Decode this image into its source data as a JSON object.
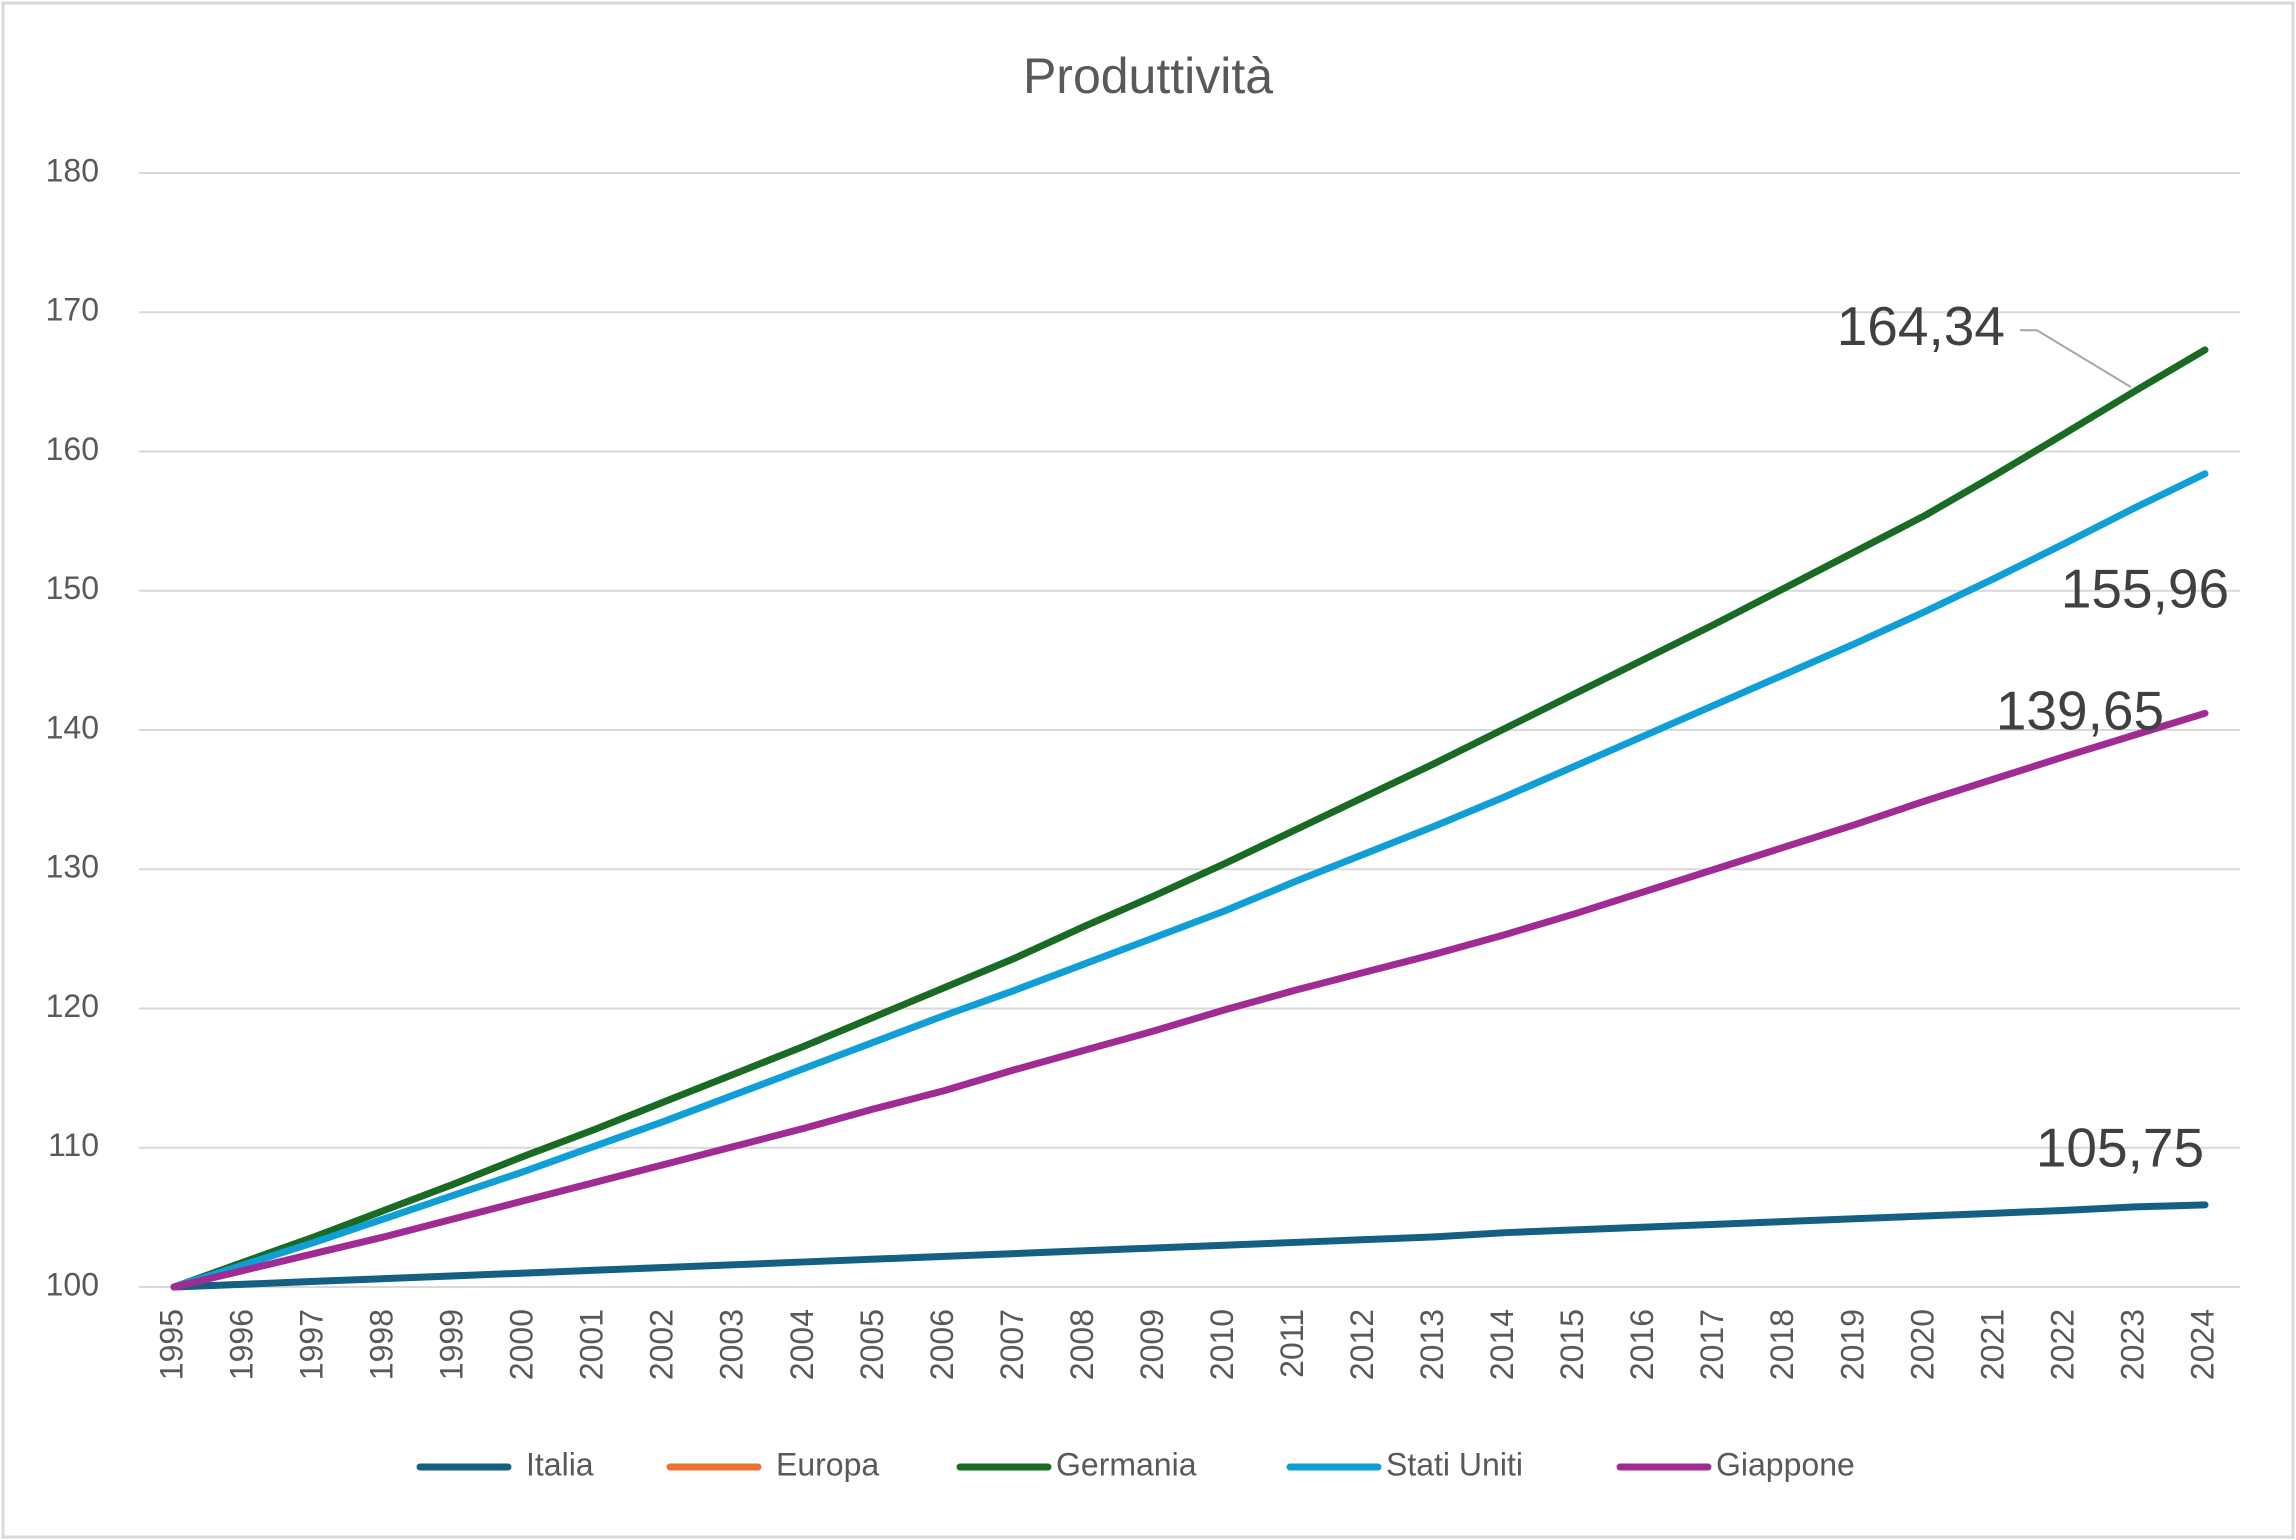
{
  "chart_data": {
    "type": "line",
    "title": "Produttività",
    "categories": [
      "1995",
      "1996",
      "1997",
      "1998",
      "1999",
      "2000",
      "2001",
      "2002",
      "2003",
      "2004",
      "2005",
      "2006",
      "2007",
      "2008",
      "2009",
      "2010",
      "2011",
      "2012",
      "2013",
      "2014",
      "2015",
      "2016",
      "2017",
      "2018",
      "2019",
      "2020",
      "2021",
      "2022",
      "2023",
      "2024"
    ],
    "series": [
      {
        "name": "Italia",
        "color": "#156082",
        "values": [
          100,
          100.2,
          100.4,
          100.6,
          100.8,
          101.0,
          101.2,
          101.4,
          101.6,
          101.8,
          102.0,
          102.2,
          102.4,
          102.6,
          102.8,
          103.0,
          103.2,
          103.4,
          103.6,
          103.9,
          104.1,
          104.3,
          104.5,
          104.7,
          104.9,
          105.1,
          105.3,
          105.5,
          105.75,
          105.9
        ],
        "value_labels": [
          null,
          null,
          null,
          null,
          null,
          null,
          null,
          null,
          null,
          null,
          null,
          null,
          null,
          null,
          null,
          null,
          null,
          null,
          null,
          null,
          null,
          null,
          null,
          null,
          null,
          null,
          null,
          null,
          "105,75",
          null
        ]
      },
      {
        "name": "Europa",
        "color": "#e97132",
        "values": [
          null,
          null,
          null,
          null,
          null,
          null,
          null,
          null,
          null,
          null,
          null,
          null,
          null,
          null,
          null,
          null,
          null,
          null,
          null,
          null,
          null,
          null,
          null,
          null,
          null,
          null,
          null,
          null,
          null,
          null
        ]
      },
      {
        "name": "Germania",
        "color": "#196b24",
        "values": [
          100,
          101.8,
          103.6,
          105.5,
          107.4,
          109.4,
          111.3,
          113.3,
          115.3,
          117.3,
          119.4,
          121.5,
          123.6,
          125.9,
          128.1,
          130.4,
          132.8,
          135.2,
          137.6,
          140.1,
          142.6,
          145.1,
          147.6,
          150.2,
          152.8,
          155.4,
          158.3,
          161.3,
          164.34,
          167.3
        ],
        "value_labels": [
          null,
          null,
          null,
          null,
          null,
          null,
          null,
          null,
          null,
          null,
          null,
          null,
          null,
          null,
          null,
          null,
          null,
          null,
          null,
          null,
          null,
          null,
          null,
          null,
          null,
          null,
          null,
          null,
          "164,34",
          null
        ]
      },
      {
        "name": "Stati Uniti",
        "color": "#0f9ed5",
        "values": [
          100,
          101.6,
          103.2,
          104.9,
          106.6,
          108.3,
          110.1,
          111.9,
          113.8,
          115.7,
          117.6,
          119.5,
          121.3,
          123.2,
          125.1,
          127.0,
          129.1,
          131.1,
          133.1,
          135.2,
          137.4,
          139.6,
          141.8,
          144.0,
          146.2,
          148.5,
          150.9,
          153.4,
          155.96,
          158.4
        ],
        "value_labels": [
          null,
          null,
          null,
          null,
          null,
          null,
          null,
          null,
          null,
          null,
          null,
          null,
          null,
          null,
          null,
          null,
          null,
          null,
          null,
          null,
          null,
          null,
          null,
          null,
          null,
          null,
          null,
          null,
          "155,96",
          null
        ]
      },
      {
        "name": "Giappone",
        "color": "#a02b93",
        "values": [
          100,
          101.2,
          102.4,
          103.6,
          104.9,
          106.2,
          107.5,
          108.8,
          110.1,
          111.4,
          112.8,
          114.1,
          115.6,
          117.0,
          118.4,
          119.9,
          121.3,
          122.6,
          123.9,
          125.3,
          126.8,
          128.4,
          130.0,
          131.6,
          133.2,
          134.9,
          136.5,
          138.1,
          139.65,
          141.2
        ],
        "value_labels": [
          null,
          null,
          null,
          null,
          null,
          null,
          null,
          null,
          null,
          null,
          null,
          null,
          null,
          null,
          null,
          null,
          null,
          null,
          null,
          null,
          null,
          null,
          null,
          null,
          null,
          null,
          null,
          null,
          "139,65",
          null
        ]
      }
    ],
    "ylim": [
      100,
      180
    ],
    "yticks": [
      100,
      110,
      120,
      130,
      140,
      150,
      160,
      170,
      180
    ],
    "grid": true,
    "legend": "bottom"
  }
}
